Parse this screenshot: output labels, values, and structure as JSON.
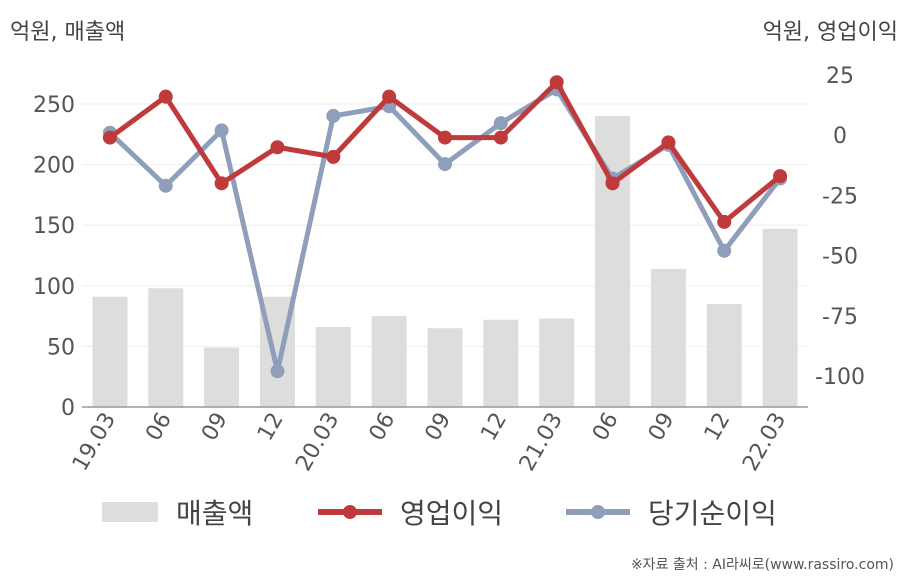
{
  "units": {
    "left": "억원, 매출액",
    "right": "억원, 영업이익"
  },
  "source": "※자료 출처 : AI라씨로(www.rassiro.com)",
  "colors": {
    "bar": "#dddddd",
    "operating": "#c0393b",
    "net": "#8f9fbb"
  },
  "legend": [
    {
      "label": "매출액",
      "kind": "bar"
    },
    {
      "label": "영업이익",
      "kind": "operating"
    },
    {
      "label": "당기순이익",
      "kind": "net"
    }
  ],
  "chart_data": {
    "type": "bar",
    "categories": [
      "19.03",
      "06",
      "09",
      "12",
      "20.03",
      "06",
      "09",
      "12",
      "21.03",
      "06",
      "09",
      "12",
      "22.03"
    ],
    "y_left": {
      "ticks": [
        0,
        50,
        100,
        150,
        200,
        250
      ],
      "ylim": [
        0,
        250
      ]
    },
    "y_right": {
      "ticks": [
        25,
        0,
        -25,
        -50,
        -75,
        -100
      ],
      "ylim": [
        -100,
        25
      ]
    },
    "series": [
      {
        "name": "매출액",
        "kind": "bar",
        "axis": "left",
        "values": [
          91,
          98,
          49,
          91,
          66,
          75,
          65,
          72,
          73,
          240,
          114,
          85,
          147
        ]
      },
      {
        "name": "영업이익",
        "kind": "line",
        "axis": "right",
        "values": [
          -1,
          16,
          -20,
          -5,
          -9,
          16,
          -1,
          -1,
          22,
          -20,
          -3,
          -36,
          -17
        ]
      },
      {
        "name": "당기순이익",
        "kind": "line",
        "axis": "right",
        "values": [
          1,
          -21,
          2,
          -98,
          8,
          12,
          -12,
          5,
          19,
          -18,
          -4,
          -48,
          -18
        ]
      }
    ]
  }
}
